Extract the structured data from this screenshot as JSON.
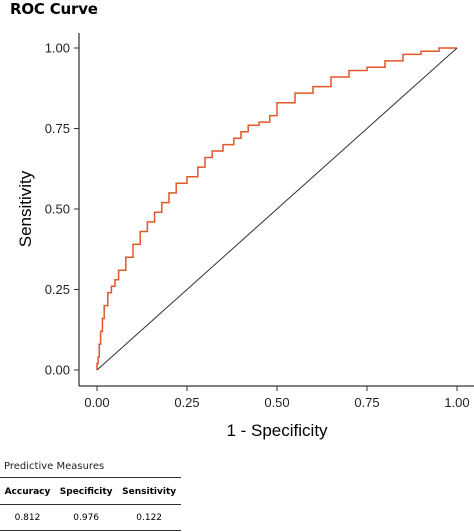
{
  "chart_data": {
    "type": "line",
    "title": "ROC Curve",
    "xlabel": "1 - Specificity",
    "ylabel": "Sensitivity",
    "xlim": [
      0,
      1
    ],
    "ylim": [
      0,
      1
    ],
    "x_ticks": [
      "0.00",
      "0.25",
      "0.50",
      "0.75",
      "1.00"
    ],
    "y_ticks": [
      "0.00",
      "0.25",
      "0.50",
      "0.75",
      "1.00"
    ],
    "grid": false,
    "series": [
      {
        "color": "#e0572a",
        "x": [
          0,
          0.003,
          0.006,
          0.01,
          0.015,
          0.02,
          0.03,
          0.04,
          0.05,
          0.06,
          0.08,
          0.1,
          0.12,
          0.14,
          0.16,
          0.18,
          0.2,
          0.22,
          0.25,
          0.28,
          0.3,
          0.32,
          0.35,
          0.38,
          0.4,
          0.42,
          0.45,
          0.48,
          0.5,
          0.55,
          0.6,
          0.65,
          0.7,
          0.75,
          0.8,
          0.85,
          0.9,
          0.95,
          0.97,
          1.0
        ],
        "y": [
          0,
          0.02,
          0.04,
          0.08,
          0.12,
          0.16,
          0.2,
          0.24,
          0.26,
          0.28,
          0.31,
          0.35,
          0.39,
          0.43,
          0.46,
          0.49,
          0.52,
          0.55,
          0.58,
          0.6,
          0.63,
          0.66,
          0.68,
          0.7,
          0.72,
          0.74,
          0.76,
          0.77,
          0.79,
          0.83,
          0.86,
          0.88,
          0.91,
          0.93,
          0.94,
          0.96,
          0.98,
          0.99,
          1.0,
          1.0
        ]
      },
      {
        "color": "#333333",
        "x": [
          0,
          1
        ],
        "y": [
          0,
          1
        ]
      }
    ]
  },
  "measures": {
    "caption": "Predictive Measures",
    "headers": [
      "Accuracy",
      "Specificity",
      "Sensitivity"
    ],
    "values": [
      "0.812",
      "0.976",
      "0.122"
    ]
  }
}
